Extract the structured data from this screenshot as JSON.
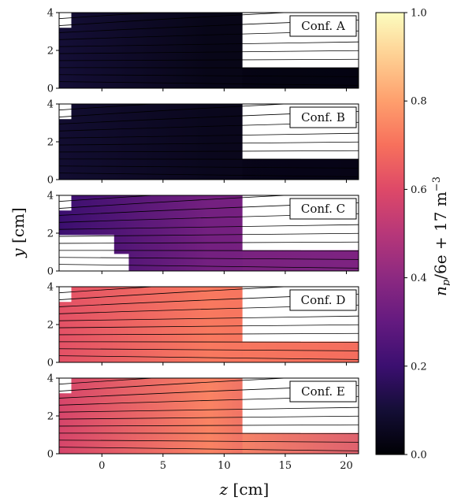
{
  "chart_data": {
    "type": "heatmap",
    "xlabel": "z [cm]",
    "ylabel": "y [cm]",
    "xlim": [
      -3.5,
      21
    ],
    "ylim": [
      0,
      4
    ],
    "x_ticks": [
      "0",
      "5",
      "10",
      "15",
      "20"
    ],
    "x_tick_values": [
      0,
      5,
      10,
      15,
      20
    ],
    "y_ticks": [
      "0",
      "2",
      "4"
    ],
    "y_tick_values": [
      0,
      2,
      4
    ],
    "colorbar": {
      "label": "n_p/6e + 17 m^-3",
      "range": [
        0.0,
        1.0
      ],
      "ticks": [
        "0.0",
        "0.2",
        "0.4",
        "0.6",
        "0.8",
        "1.0"
      ],
      "tick_values": [
        0.0,
        0.2,
        0.4,
        0.6,
        0.8,
        1.0
      ],
      "colormap": "magma"
    },
    "panels": [
      {
        "label": "Conf. A",
        "density_left": 0.1,
        "density_mid": 0.04,
        "density_right": 0.03,
        "density_strip": 0.02
      },
      {
        "label": "Conf. B",
        "density_left": 0.09,
        "density_mid": 0.05,
        "density_right": 0.04,
        "density_strip": 0.03
      },
      {
        "label": "Conf. C",
        "density_left": 0.2,
        "density_mid": 0.34,
        "density_right": 0.36,
        "density_strip": 0.37
      },
      {
        "label": "Conf. D",
        "density_left": 0.62,
        "density_mid": 0.72,
        "density_right": 0.68,
        "density_strip": 0.72
      },
      {
        "label": "Conf. E",
        "density_left": 0.58,
        "density_mid": 0.74,
        "density_right": 0.56,
        "density_strip": 0.8
      }
    ]
  }
}
